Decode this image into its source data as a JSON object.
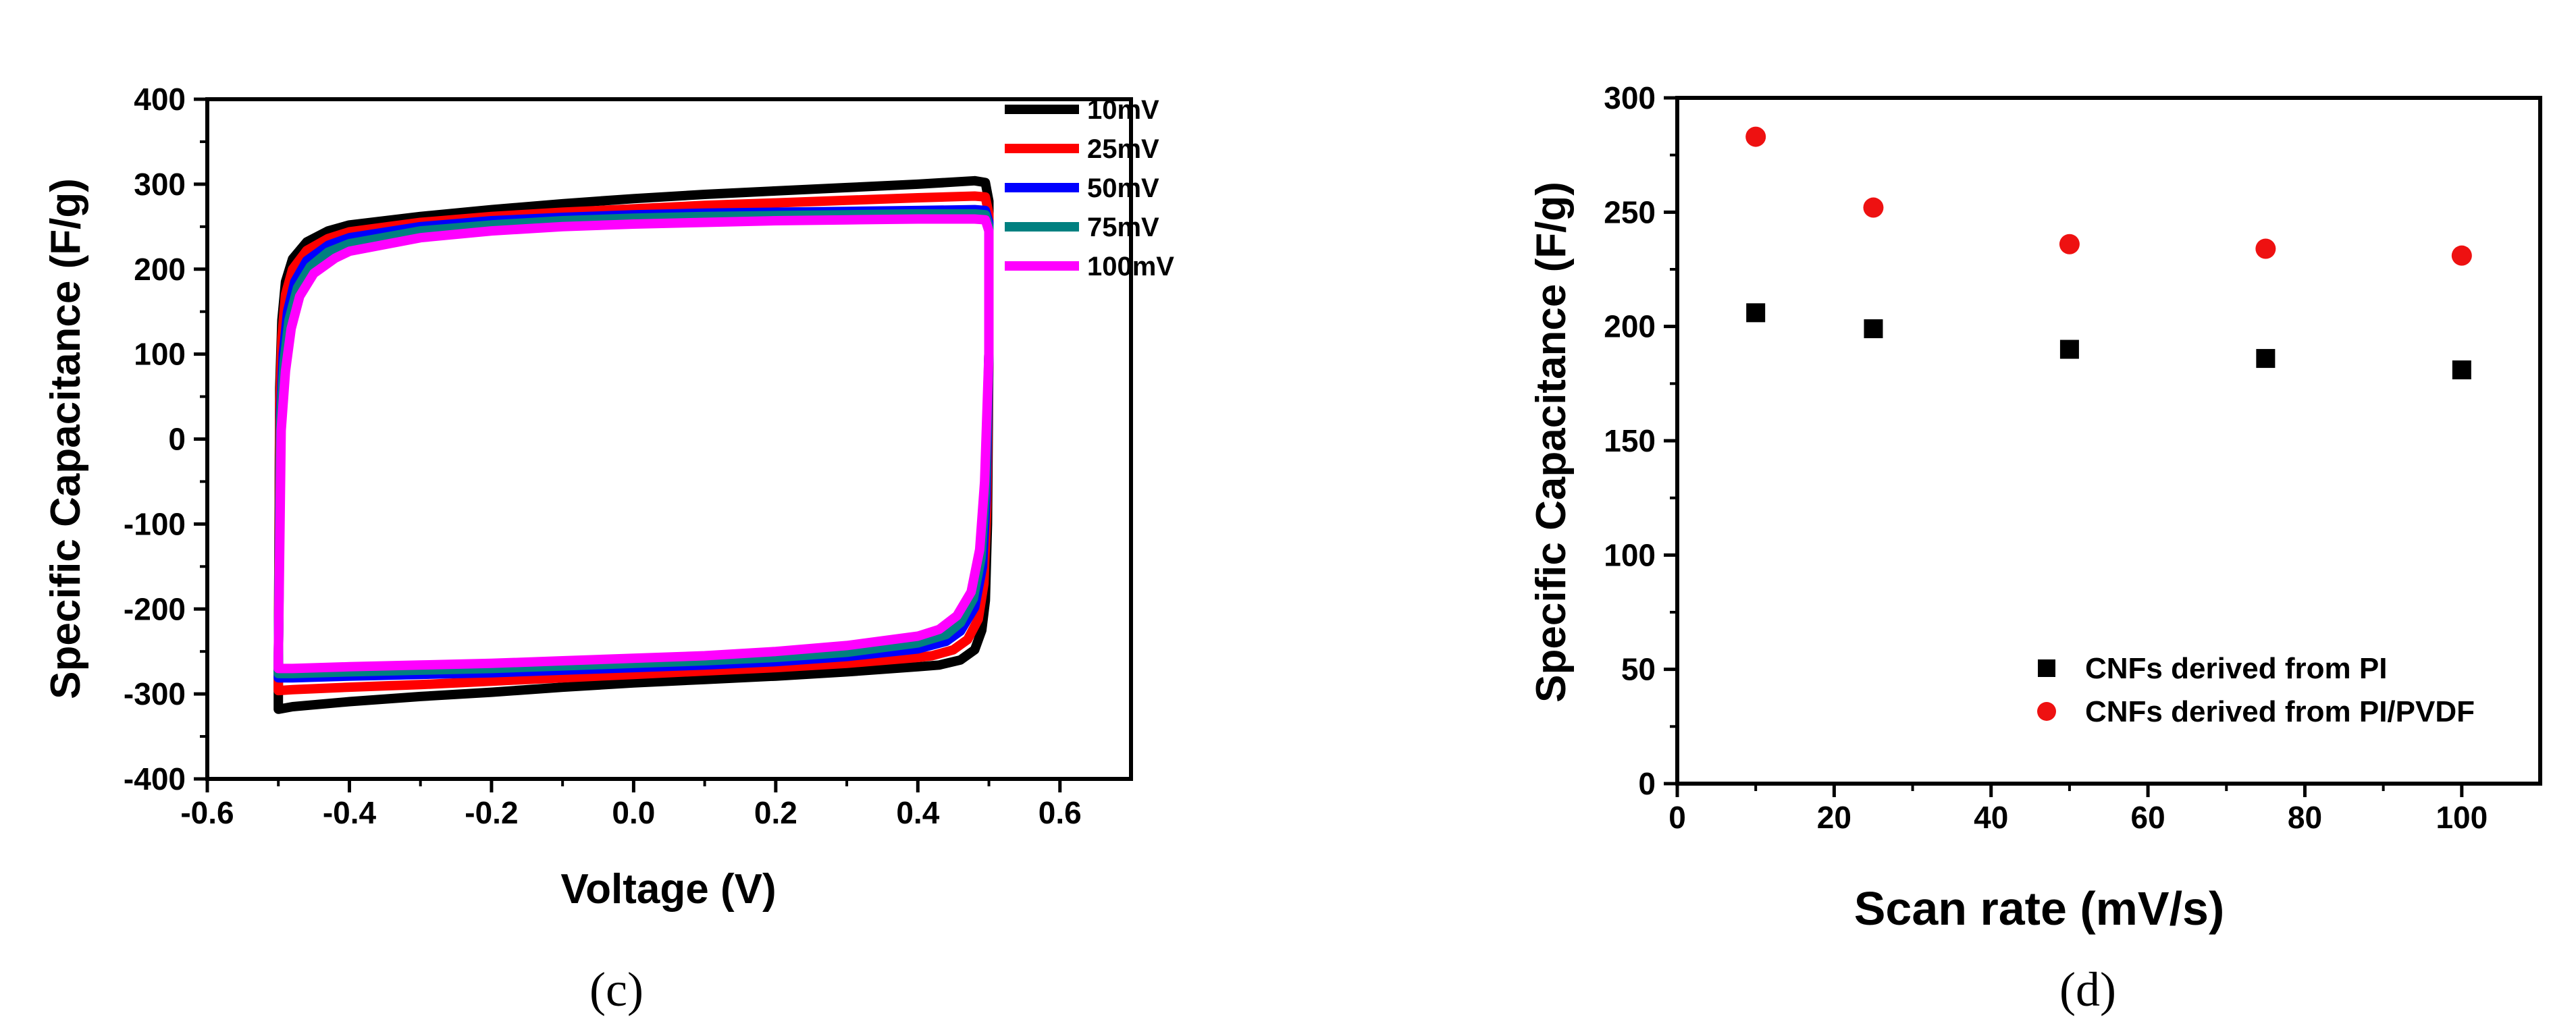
{
  "chart_data": [
    {
      "type": "line",
      "panel": "c",
      "caption": "(c)",
      "title": "",
      "xlabel": "Voltage (V)",
      "ylabel": "Specific Capacitance (F/g)",
      "xlim": [
        -0.6,
        0.7
      ],
      "ylim": [
        -400,
        400
      ],
      "xticks": [
        -0.6,
        -0.4,
        -0.2,
        0.0,
        0.2,
        0.4,
        0.6
      ],
      "xtick_labels": [
        "-0.6",
        "-0.4",
        "-0.2",
        "0.0",
        "0.2",
        "0.4",
        "0.6"
      ],
      "yticks": [
        -400,
        -300,
        -200,
        -100,
        0,
        100,
        200,
        300,
        400
      ],
      "ytick_labels": [
        "-400",
        "-300",
        "-200",
        "-100",
        "0",
        "100",
        "200",
        "300",
        "400"
      ],
      "grid": false,
      "legend_position": "top-right",
      "series": [
        {
          "name": "10mV",
          "color": "#000000",
          "upper": [
            [
              -0.5,
              -290
            ],
            [
              -0.498,
              60
            ],
            [
              -0.495,
              140
            ],
            [
              -0.49,
              185
            ],
            [
              -0.48,
              212
            ],
            [
              -0.46,
              232
            ],
            [
              -0.43,
              245
            ],
            [
              -0.4,
              252
            ],
            [
              -0.3,
              262
            ],
            [
              -0.2,
              270
            ],
            [
              -0.1,
              277
            ],
            [
              0.0,
              283
            ],
            [
              0.1,
              288
            ],
            [
              0.2,
              292
            ],
            [
              0.3,
              296
            ],
            [
              0.4,
              300
            ],
            [
              0.48,
              304
            ],
            [
              0.495,
              302
            ]
          ],
          "lower": [
            [
              0.5,
              280
            ],
            [
              0.5,
              100
            ],
            [
              0.498,
              -100
            ],
            [
              0.495,
              -190
            ],
            [
              0.49,
              -225
            ],
            [
              0.48,
              -248
            ],
            [
              0.46,
              -260
            ],
            [
              0.43,
              -266
            ],
            [
              0.4,
              -268
            ],
            [
              0.3,
              -274
            ],
            [
              0.2,
              -279
            ],
            [
              0.1,
              -283
            ],
            [
              0.0,
              -287
            ],
            [
              -0.1,
              -292
            ],
            [
              -0.2,
              -298
            ],
            [
              -0.3,
              -303
            ],
            [
              -0.4,
              -309
            ],
            [
              -0.48,
              -315
            ],
            [
              -0.5,
              -318
            ]
          ]
        },
        {
          "name": "25mV",
          "color": "#ff0000",
          "upper": [
            [
              -0.5,
              -280
            ],
            [
              -0.498,
              40
            ],
            [
              -0.495,
              120
            ],
            [
              -0.49,
              170
            ],
            [
              -0.48,
              200
            ],
            [
              -0.46,
              222
            ],
            [
              -0.43,
              236
            ],
            [
              -0.4,
              244
            ],
            [
              -0.3,
              255
            ],
            [
              -0.2,
              262
            ],
            [
              -0.1,
              267
            ],
            [
              0.0,
              271
            ],
            [
              0.1,
              275
            ],
            [
              0.2,
              278
            ],
            [
              0.3,
              281
            ],
            [
              0.4,
              284
            ],
            [
              0.48,
              286
            ],
            [
              0.495,
              285
            ]
          ],
          "lower": [
            [
              0.5,
              265
            ],
            [
              0.5,
              100
            ],
            [
              0.497,
              -80
            ],
            [
              0.493,
              -170
            ],
            [
              0.485,
              -212
            ],
            [
              0.47,
              -236
            ],
            [
              0.45,
              -248
            ],
            [
              0.42,
              -255
            ],
            [
              0.4,
              -257
            ],
            [
              0.3,
              -264
            ],
            [
              0.2,
              -269
            ],
            [
              0.1,
              -273
            ],
            [
              0.0,
              -277
            ],
            [
              -0.1,
              -281
            ],
            [
              -0.2,
              -285
            ],
            [
              -0.3,
              -289
            ],
            [
              -0.4,
              -292
            ],
            [
              -0.48,
              -295
            ],
            [
              -0.5,
              -296
            ]
          ]
        },
        {
          "name": "50mV",
          "color": "#0000ff",
          "upper": [
            [
              -0.5,
              -270
            ],
            [
              -0.497,
              30
            ],
            [
              -0.493,
              100
            ],
            [
              -0.487,
              150
            ],
            [
              -0.477,
              185
            ],
            [
              -0.46,
              210
            ],
            [
              -0.43,
              228
            ],
            [
              -0.4,
              237
            ],
            [
              -0.3,
              250
            ],
            [
              -0.2,
              257
            ],
            [
              -0.1,
              261
            ],
            [
              0.0,
              264
            ],
            [
              0.1,
              266
            ],
            [
              0.2,
              267
            ],
            [
              0.3,
              268
            ],
            [
              0.4,
              269
            ],
            [
              0.48,
              270
            ],
            [
              0.495,
              269
            ]
          ],
          "lower": [
            [
              0.5,
              255
            ],
            [
              0.5,
              100
            ],
            [
              0.496,
              -70
            ],
            [
              0.491,
              -150
            ],
            [
              0.48,
              -198
            ],
            [
              0.46,
              -226
            ],
            [
              0.44,
              -238
            ],
            [
              0.4,
              -247
            ],
            [
              0.3,
              -256
            ],
            [
              0.2,
              -262
            ],
            [
              0.1,
              -266
            ],
            [
              0.0,
              -269
            ],
            [
              -0.1,
              -272
            ],
            [
              -0.2,
              -275
            ],
            [
              -0.3,
              -277
            ],
            [
              -0.4,
              -279
            ],
            [
              -0.48,
              -281
            ],
            [
              -0.5,
              -281
            ]
          ]
        },
        {
          "name": "75mV",
          "color": "#008080",
          "upper": [
            [
              -0.5,
              -265
            ],
            [
              -0.497,
              20
            ],
            [
              -0.492,
              90
            ],
            [
              -0.485,
              140
            ],
            [
              -0.473,
              178
            ],
            [
              -0.455,
              203
            ],
            [
              -0.43,
              220
            ],
            [
              -0.4,
              230
            ],
            [
              -0.3,
              245
            ],
            [
              -0.2,
              252
            ],
            [
              -0.1,
              257
            ],
            [
              0.0,
              260
            ],
            [
              0.1,
              262
            ],
            [
              0.2,
              263
            ],
            [
              0.3,
              264
            ],
            [
              0.4,
              265
            ],
            [
              0.48,
              265
            ],
            [
              0.495,
              264
            ]
          ],
          "lower": [
            [
              0.5,
              250
            ],
            [
              0.5,
              100
            ],
            [
              0.495,
              -60
            ],
            [
              0.489,
              -140
            ],
            [
              0.478,
              -188
            ],
            [
              0.46,
              -216
            ],
            [
              0.44,
              -230
            ],
            [
              0.4,
              -240
            ],
            [
              0.3,
              -251
            ],
            [
              0.2,
              -257
            ],
            [
              0.1,
              -261
            ],
            [
              0.0,
              -264
            ],
            [
              -0.1,
              -267
            ],
            [
              -0.2,
              -270
            ],
            [
              -0.3,
              -272
            ],
            [
              -0.4,
              -274
            ],
            [
              -0.48,
              -276
            ],
            [
              -0.5,
              -276
            ]
          ]
        },
        {
          "name": "100mV",
          "color": "#ff00ff",
          "upper": [
            [
              -0.5,
              -260
            ],
            [
              -0.496,
              10
            ],
            [
              -0.49,
              80
            ],
            [
              -0.482,
              130
            ],
            [
              -0.47,
              168
            ],
            [
              -0.45,
              195
            ],
            [
              -0.42,
              213
            ],
            [
              -0.4,
              221
            ],
            [
              -0.3,
              237
            ],
            [
              -0.2,
              245
            ],
            [
              -0.1,
              250
            ],
            [
              0.0,
              253
            ],
            [
              0.1,
              255
            ],
            [
              0.2,
              257
            ],
            [
              0.3,
              258
            ],
            [
              0.4,
              259
            ],
            [
              0.48,
              259
            ],
            [
              0.495,
              258
            ]
          ],
          "lower": [
            [
              0.5,
              245
            ],
            [
              0.5,
              100
            ],
            [
              0.494,
              -50
            ],
            [
              0.487,
              -130
            ],
            [
              0.475,
              -180
            ],
            [
              0.455,
              -208
            ],
            [
              0.43,
              -224
            ],
            [
              0.4,
              -232
            ],
            [
              0.3,
              -243
            ],
            [
              0.2,
              -250
            ],
            [
              0.1,
              -255
            ],
            [
              0.0,
              -258
            ],
            [
              -0.1,
              -261
            ],
            [
              -0.2,
              -264
            ],
            [
              -0.3,
              -266
            ],
            [
              -0.4,
              -268
            ],
            [
              -0.48,
              -270
            ],
            [
              -0.5,
              -270
            ]
          ]
        }
      ]
    },
    {
      "type": "scatter",
      "panel": "d",
      "caption": "(d)",
      "title": "",
      "xlabel": "Scan rate (mV/s)",
      "ylabel": "Specific Capacitance (F/g)",
      "xlim": [
        0,
        110
      ],
      "ylim": [
        0,
        300
      ],
      "xticks": [
        0,
        20,
        40,
        60,
        80,
        100
      ],
      "xtick_labels": [
        "0",
        "20",
        "40",
        "60",
        "80",
        "100"
      ],
      "yticks": [
        0,
        50,
        100,
        150,
        200,
        250,
        300
      ],
      "ytick_labels": [
        "0",
        "50",
        "100",
        "150",
        "200",
        "250",
        "300"
      ],
      "grid": false,
      "legend_position": "bottom-right",
      "series": [
        {
          "name": "CNFs derived from PI",
          "color": "#000000",
          "marker": "square",
          "x": [
            10,
            25,
            50,
            75,
            100
          ],
          "y": [
            206,
            199,
            190,
            186,
            181
          ]
        },
        {
          "name": "CNFs derived from PI/PVDF",
          "color": "#ee1111",
          "marker": "circle",
          "x": [
            10,
            25,
            50,
            75,
            100
          ],
          "y": [
            283,
            252,
            236,
            234,
            231
          ]
        }
      ]
    }
  ]
}
